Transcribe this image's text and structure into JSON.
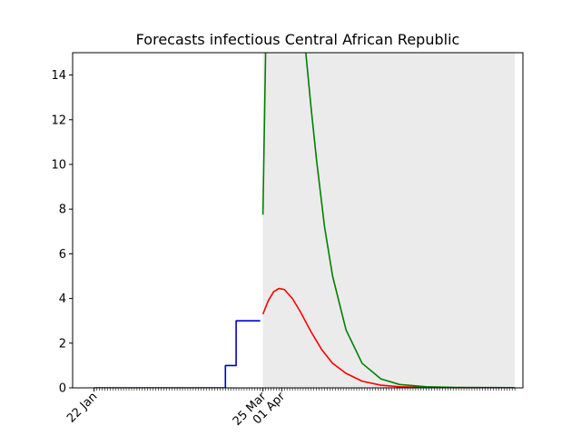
{
  "chart_data": {
    "type": "line",
    "title": "Forecasts infectious Central African Republic",
    "xlabel": "",
    "ylabel": "",
    "ylim": [
      0,
      15
    ],
    "yticks": [
      0,
      2,
      4,
      6,
      8,
      10,
      12,
      14
    ],
    "x_range_days": [
      "2020-01-14",
      "2020-06-30"
    ],
    "xtick_labels": [
      {
        "date": "2020-01-22",
        "label": "22 Jan"
      },
      {
        "date": "2020-03-25",
        "label": "25 Mar"
      },
      {
        "date": "2020-04-01",
        "label": "01 Apr"
      }
    ],
    "minor_ticks": {
      "start": "2020-01-22",
      "end": "2020-06-27"
    },
    "forecast_band": {
      "start": "2020-03-25",
      "end": "2020-06-27",
      "color": "#ebebeb"
    },
    "series": [
      {
        "color": "#0000cc",
        "style": "step",
        "x": [
          "2020-01-22",
          "2020-03-10",
          "2020-03-11",
          "2020-03-14",
          "2020-03-15",
          "2020-03-24"
        ],
        "y": [
          0,
          0,
          1,
          1,
          3,
          3
        ]
      },
      {
        "color": "#ff0000",
        "style": "line",
        "x": [
          "2020-03-25",
          "2020-03-27",
          "2020-03-29",
          "2020-03-31",
          "2020-04-02",
          "2020-04-05",
          "2020-04-08",
          "2020-04-12",
          "2020-04-16",
          "2020-04-20",
          "2020-04-25",
          "2020-05-01",
          "2020-05-08",
          "2020-05-15",
          "2020-05-25",
          "2020-06-05",
          "2020-06-27"
        ],
        "y": [
          3.3,
          3.9,
          4.3,
          4.45,
          4.4,
          4.0,
          3.4,
          2.5,
          1.7,
          1.1,
          0.65,
          0.3,
          0.12,
          0.05,
          0.02,
          0.01,
          0
        ]
      },
      {
        "color": "#008000",
        "style": "line",
        "x": [
          "2020-03-25",
          "2020-03-26",
          "2020-03-27",
          "2020-04-09",
          "2020-04-10",
          "2020-04-12",
          "2020-04-14",
          "2020-04-17",
          "2020-04-20",
          "2020-04-25",
          "2020-05-01",
          "2020-05-08",
          "2020-05-15",
          "2020-05-25",
          "2020-06-05",
          "2020-06-27"
        ],
        "y": [
          7.75,
          15,
          16,
          16,
          15,
          12.5,
          10.2,
          7.2,
          5.0,
          2.6,
          1.1,
          0.4,
          0.15,
          0.05,
          0.02,
          0.01
        ]
      }
    ]
  }
}
